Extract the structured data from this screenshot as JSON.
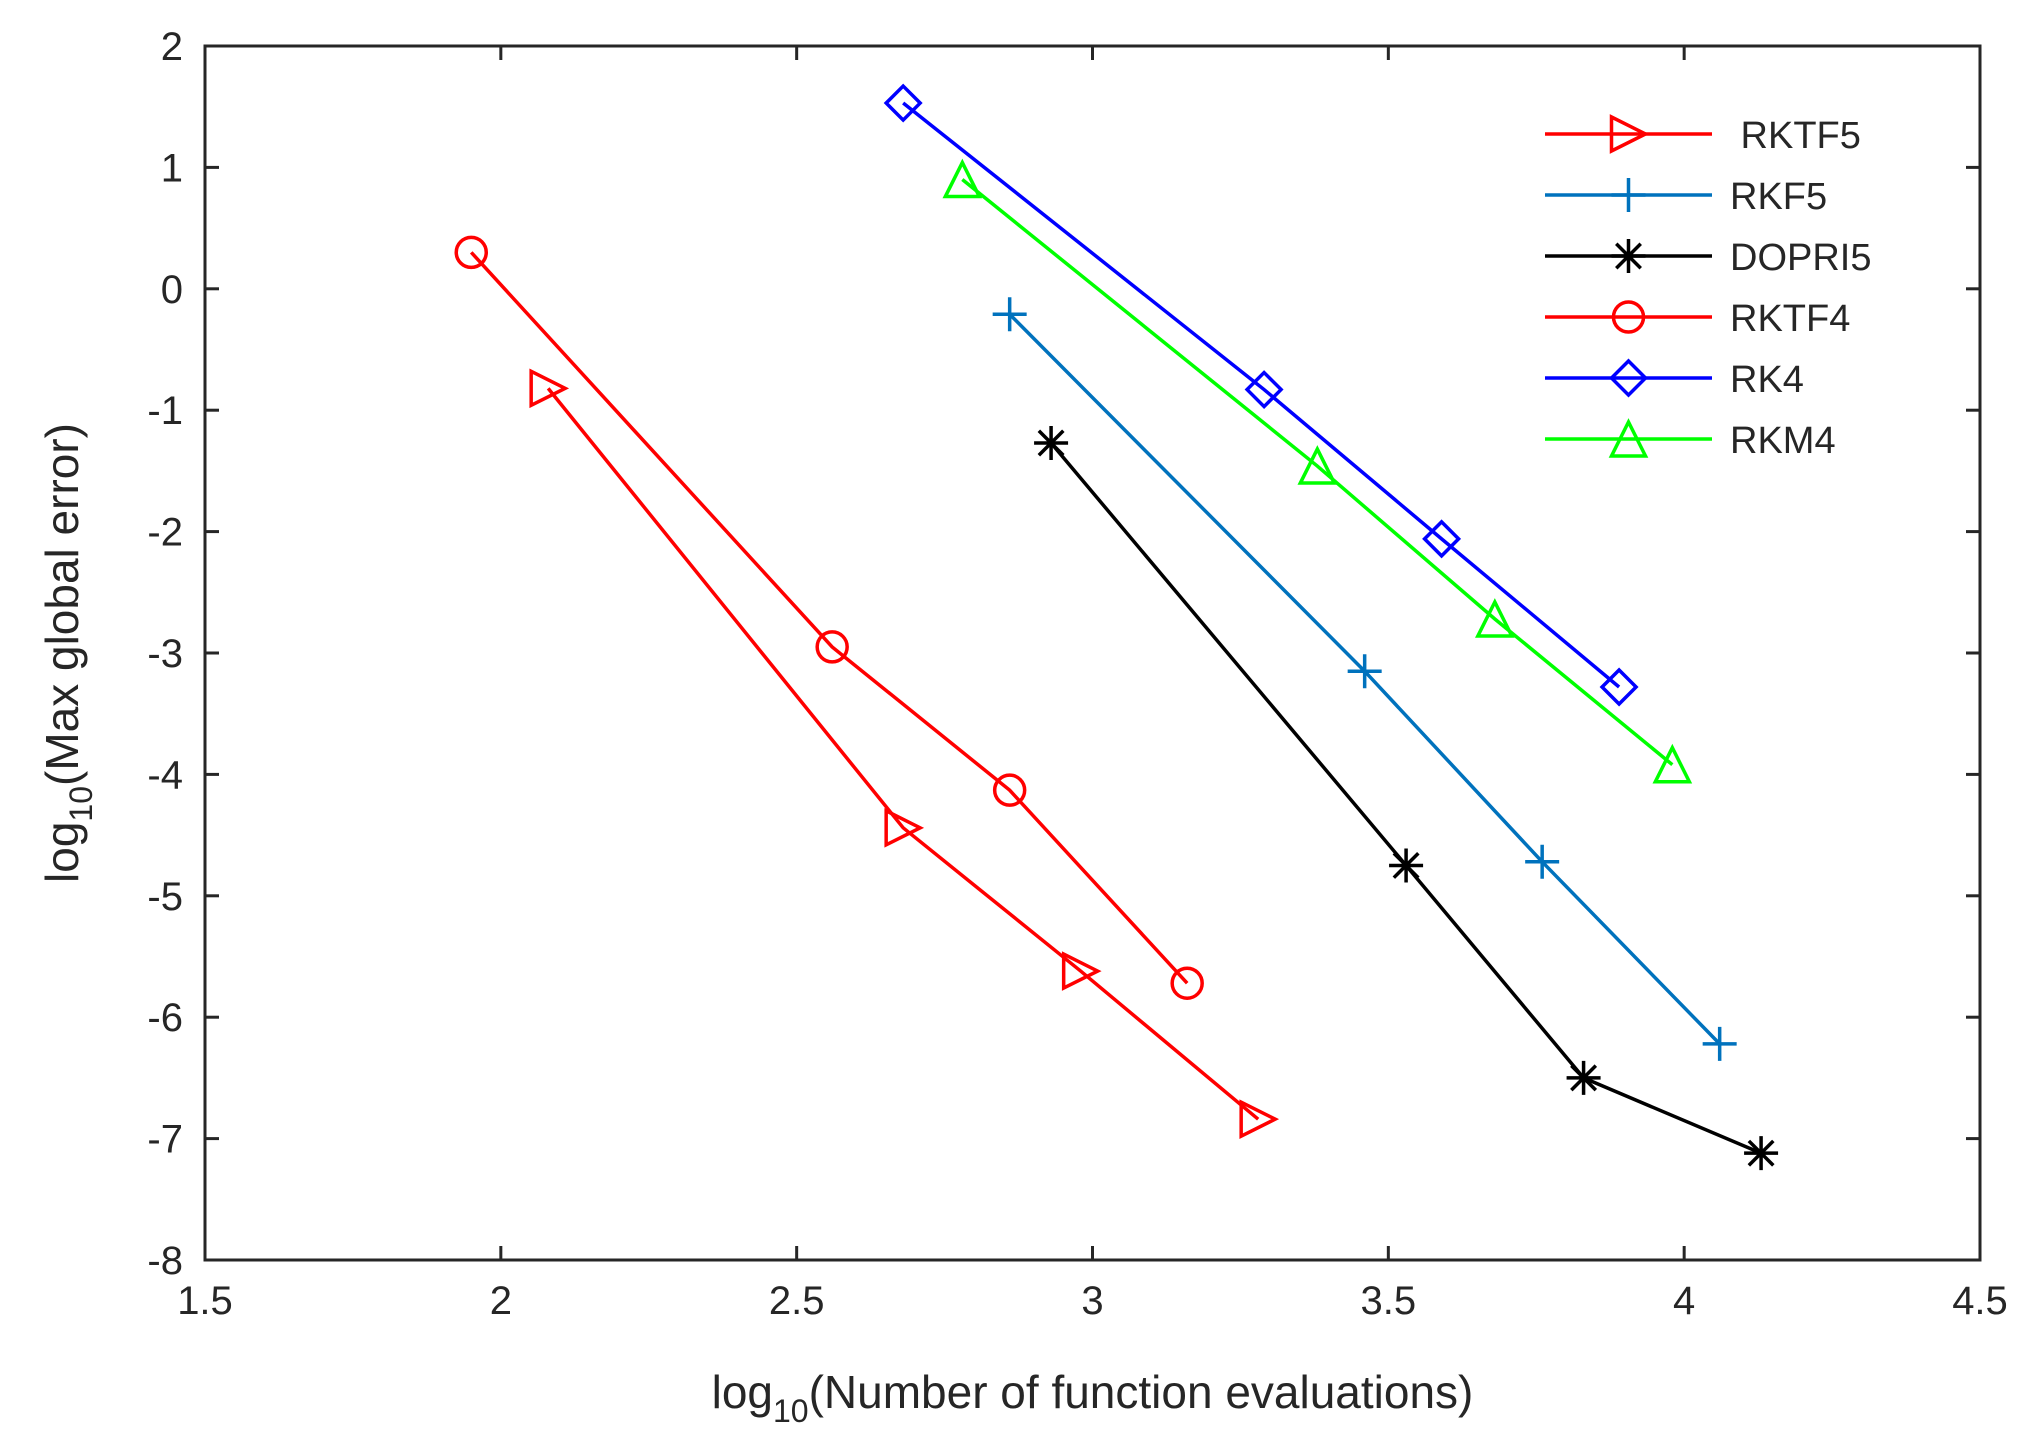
{
  "chart_data": {
    "type": "line",
    "title": "",
    "xlabel": {
      "prefix": "log",
      "sub": "10",
      "suffix": "(Number of function evaluations)"
    },
    "ylabel": {
      "prefix": "log",
      "sub": "10",
      "suffix": "(Max global error)"
    },
    "xlim": [
      1.5,
      4.5
    ],
    "ylim": [
      -8,
      2
    ],
    "xticks": [
      1.5,
      2,
      2.5,
      3,
      3.5,
      4,
      4.5
    ],
    "xtick_labels": [
      "1.5",
      "2",
      "2.5",
      "3",
      "3.5",
      "4",
      "4.5"
    ],
    "yticks": [
      2,
      1,
      0,
      -1,
      -2,
      -3,
      -4,
      -5,
      -6,
      -7,
      -8
    ],
    "ytick_labels": [
      "2",
      "1",
      "0",
      "-1",
      "-2",
      "-3",
      "-4",
      "-5",
      "-6",
      "-7",
      "-8"
    ],
    "grid": false,
    "legend_position": "top-right",
    "series": [
      {
        "name": " RKTF5",
        "color": "#ff0000",
        "marker": "triangle-right",
        "x": [
          2.08,
          2.68,
          2.98,
          3.28
        ],
        "y": [
          -0.82,
          -4.44,
          -5.62,
          -6.84
        ]
      },
      {
        "name": "RKF5",
        "color": "#0072bd",
        "marker": "plus",
        "x": [
          2.86,
          3.46,
          3.76,
          4.06
        ],
        "y": [
          -0.21,
          -3.15,
          -4.72,
          -6.22
        ]
      },
      {
        "name": "DOPRI5",
        "color": "#000000",
        "marker": "asterisk",
        "x": [
          2.93,
          3.53,
          3.83,
          4.13
        ],
        "y": [
          -1.27,
          -4.75,
          -6.5,
          -7.12
        ]
      },
      {
        "name": "RKTF4",
        "color": "#ff0000",
        "marker": "circle",
        "x": [
          1.95,
          2.56,
          2.86,
          3.16
        ],
        "y": [
          0.3,
          -2.95,
          -4.13,
          -5.72
        ]
      },
      {
        "name": "RK4",
        "color": "#0000ff",
        "marker": "diamond",
        "x": [
          2.68,
          3.29,
          3.59,
          3.89
        ],
        "y": [
          1.53,
          -0.83,
          -2.06,
          -3.28
        ]
      },
      {
        "name": "RKM4",
        "color": "#00ff00",
        "marker": "triangle-up",
        "x": [
          2.78,
          3.38,
          3.68,
          3.98
        ],
        "y": [
          0.9,
          -1.46,
          -2.72,
          -3.92
        ]
      }
    ]
  }
}
